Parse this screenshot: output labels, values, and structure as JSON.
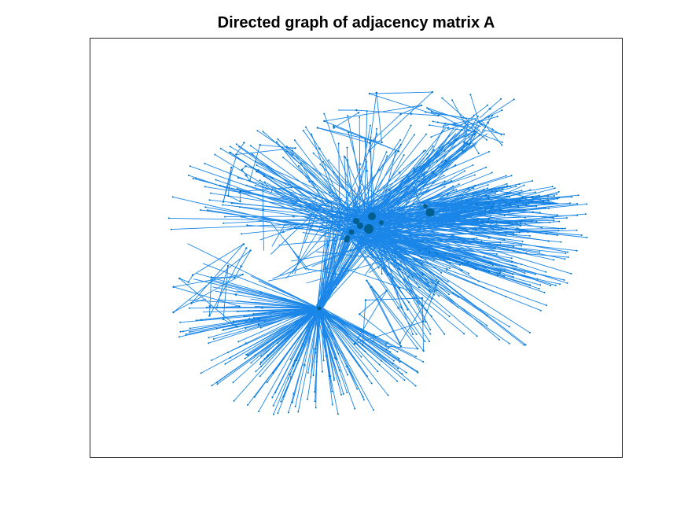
{
  "figure": {
    "title": "Directed graph of adjacency matrix A"
  },
  "colors": {
    "edge": "#0072BD",
    "edge_light": "#1a86e8",
    "node": "#0072BD",
    "hub_node": "#005f8f",
    "axes_border": "#262626",
    "background": "#ffffff"
  },
  "chart_data": {
    "type": "directed-graph",
    "title": "Directed graph of adjacency matrix A",
    "xlabel": "",
    "ylabel": "",
    "ticks_visible": false,
    "grid": false,
    "legend": "none",
    "layout": "force-directed",
    "hubs": [
      "central-cluster",
      "lower-left-hub",
      "right-cluster",
      "upper-right-cluster"
    ]
  }
}
